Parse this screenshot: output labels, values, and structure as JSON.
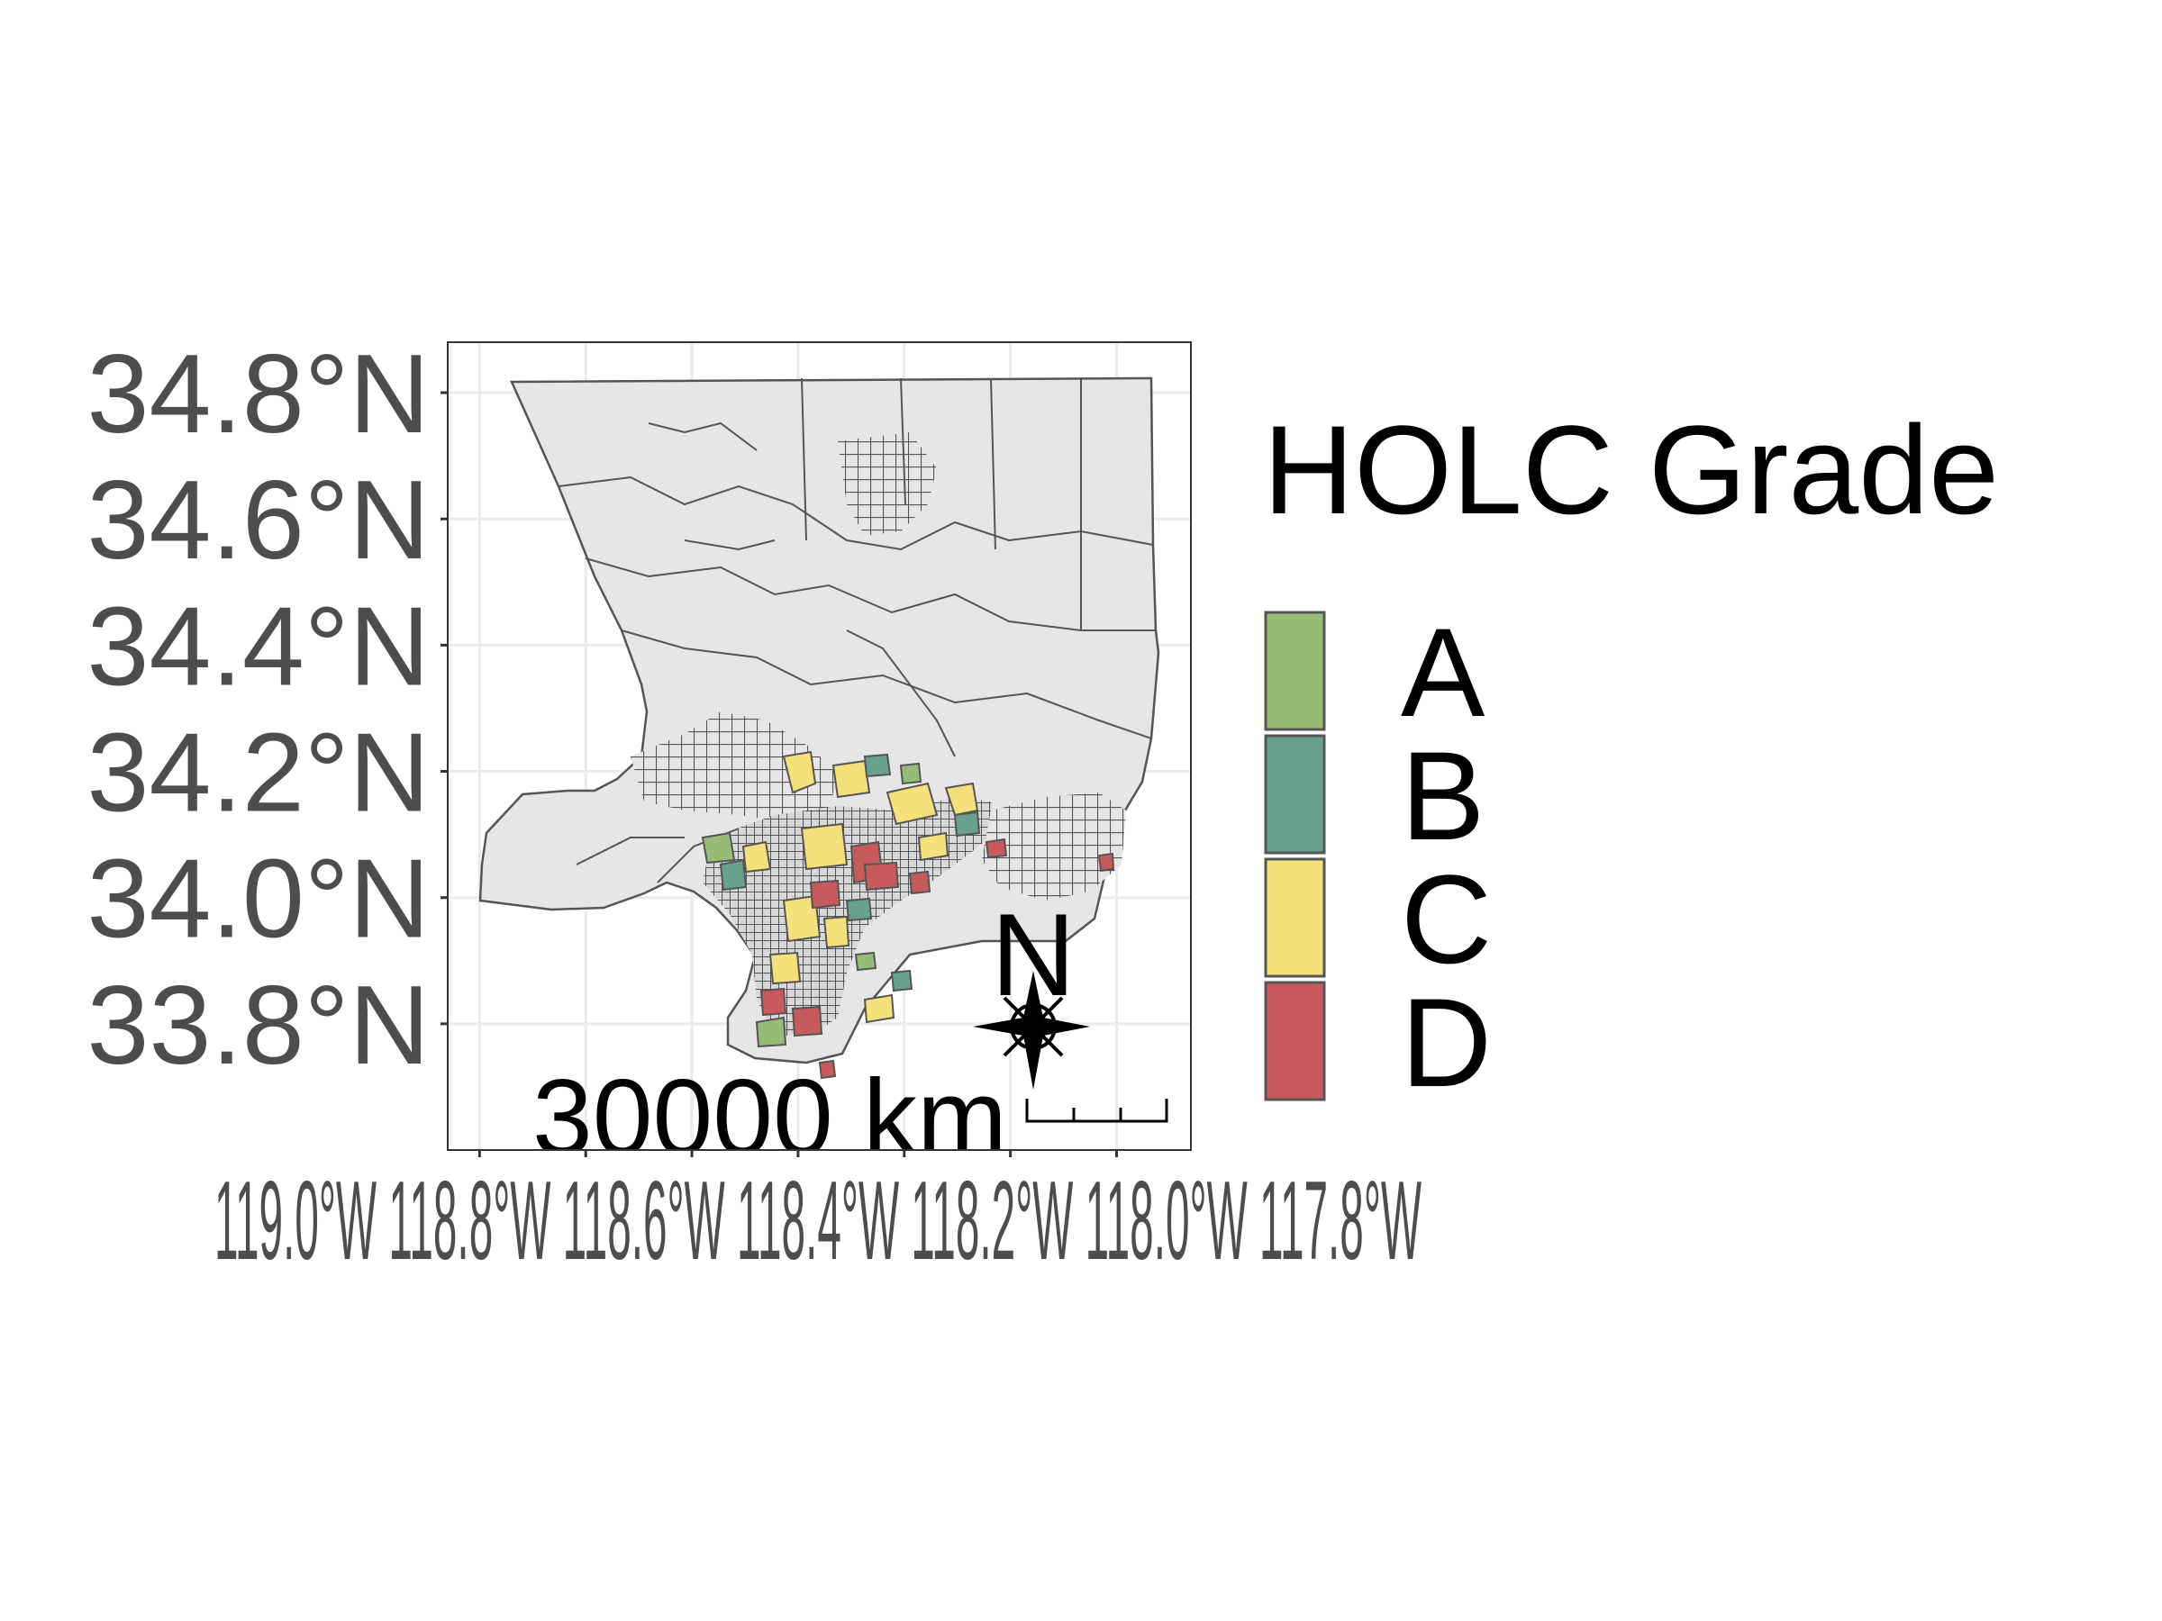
{
  "chart_data": {
    "type": "choropleth-map",
    "title": "",
    "xlabel": "",
    "ylabel": "",
    "grid": true,
    "panel_border": true,
    "y_axis": {
      "ticks": [
        34.8,
        34.6,
        34.4,
        34.2,
        34.0,
        33.8
      ],
      "tick_labels": [
        "34.8°N",
        "34.6°N",
        "34.4°N",
        "34.2°N",
        "34.0°N",
        "33.8°N"
      ],
      "range": [
        33.6,
        34.88
      ]
    },
    "x_axis": {
      "ticks": [
        -119.0,
        -118.8,
        -118.6,
        -118.4,
        -118.2,
        -118.0,
        -117.8
      ],
      "tick_labels_overlapping": "119.0°W 118.8°W 118.6°W 118.4°W 118.2°W 118.0°W 117.8°W",
      "range": [
        -119.06,
        -117.66
      ]
    },
    "legend": {
      "title": "HOLC Grade",
      "placement": "right",
      "entries": [
        {
          "label": "A",
          "color": "#98bb77"
        },
        {
          "label": "B",
          "color": "#68a18f"
        },
        {
          "label": "C",
          "color": "#f5e17c"
        },
        {
          "label": "D",
          "color": "#c65a5d"
        }
      ]
    },
    "base_fill_color": "#e6e6e6",
    "boundary_color": "#555555",
    "scale_bar": {
      "label": "30000 km",
      "segments": 3
    },
    "north_arrow": {
      "label": "N"
    }
  }
}
